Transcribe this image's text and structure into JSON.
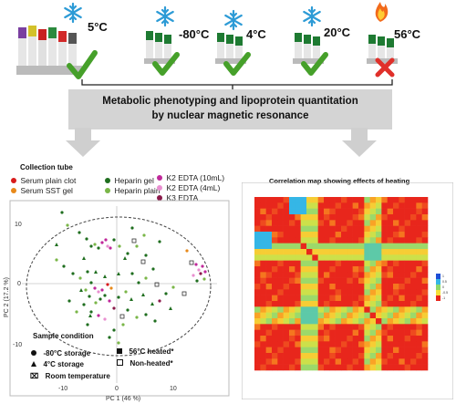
{
  "tubes": [
    {
      "temp": "5°C",
      "status": "ok"
    },
    {
      "temp": "-80°C",
      "status": "ok"
    },
    {
      "temp": "4°C",
      "status": "ok"
    },
    {
      "temp": "20°C",
      "status": "ok"
    },
    {
      "temp": "56°C",
      "status": "fail"
    }
  ],
  "banner": {
    "line1": "Metabolic phenotyping and lipoprotein quantitation",
    "line2": "by nuclear magnetic resonance"
  },
  "legend": {
    "title": "Collection tube",
    "items": [
      {
        "label": "Serum plain clot",
        "color": "#d81b1b"
      },
      {
        "label": "Serum SST gel",
        "color": "#e8891a"
      },
      {
        "label": "Heparin gel",
        "color": "#1f6e1f"
      },
      {
        "label": "Heparin plain",
        "color": "#7ab648"
      },
      {
        "label": "K2 EDTA (10mL)",
        "color": "#c0289a"
      },
      {
        "label": "K2 EDTA (4mL)",
        "color": "#e98fd0"
      },
      {
        "label": "K3 EDTA",
        "color": "#8a1a4a"
      }
    ]
  },
  "pca": {
    "xlabel": "PC 1 (46 %)",
    "ylabel": "PC 2 (17.2 %)",
    "xticks": [
      "-10",
      "0",
      "10"
    ],
    "yticks": [
      "10",
      "0",
      "-10"
    ]
  },
  "condition": {
    "title": "Sample condition",
    "items": [
      "-80°C storage",
      "4°C storage",
      "Room temperature",
      "56°C heated*",
      "Non-heated*"
    ]
  },
  "heatmap": {
    "title": "Correlation map showing effects of heating",
    "scale": [
      "1",
      "0.5",
      "0",
      "-0.5",
      "-1"
    ]
  }
}
